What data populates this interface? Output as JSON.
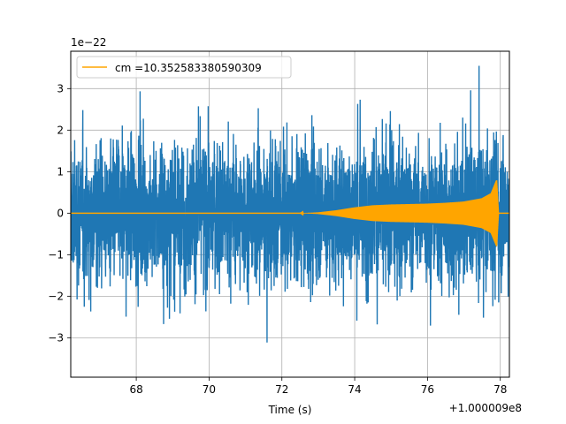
{
  "chart_data": {
    "type": "line",
    "title": "",
    "xlabel": "Time (s)",
    "ylabel": "",
    "x_offset_label": "+1.000009e8",
    "y_scale_label": "1e−22",
    "xlim": [
      66.2,
      78.25
    ],
    "ylim": [
      -3.95,
      3.9
    ],
    "xticks": [
      68,
      70,
      72,
      74,
      76,
      78
    ],
    "yticks": [
      -3,
      -2,
      -1,
      0,
      1,
      2,
      3
    ],
    "xtick_labels": [
      "68",
      "70",
      "72",
      "74",
      "76",
      "78"
    ],
    "ytick_labels": [
      "−3",
      "−2",
      "−1",
      "0",
      "1",
      "2",
      "3"
    ],
    "grid": true,
    "legend_position": "upper-left",
    "colors": {
      "strain": "#1f77b4",
      "template": "#ffa500"
    },
    "series": [
      {
        "name": "",
        "kind": "noise-strain",
        "x_range": [
          66.2,
          78.25
        ],
        "typical_envelope": 2.1,
        "peak_max": 3.55,
        "peak_min": -3.55
      },
      {
        "name": "cm =10.352583380590309",
        "kind": "chirp-template",
        "envelope_points": [
          [
            66.2,
            0.0
          ],
          [
            72.5,
            0.0
          ],
          [
            73.0,
            0.02
          ],
          [
            73.5,
            0.07
          ],
          [
            74.0,
            0.14
          ],
          [
            74.5,
            0.19
          ],
          [
            75.0,
            0.21
          ],
          [
            75.5,
            0.22
          ],
          [
            76.0,
            0.23
          ],
          [
            76.5,
            0.25
          ],
          [
            77.0,
            0.28
          ],
          [
            77.5,
            0.36
          ],
          [
            77.75,
            0.48
          ],
          [
            77.9,
            0.8
          ],
          [
            77.95,
            0.0
          ],
          [
            78.25,
            0.0
          ]
        ]
      }
    ]
  }
}
